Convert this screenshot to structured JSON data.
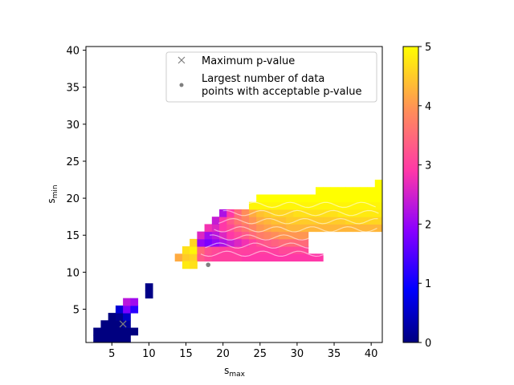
{
  "chart_data": {
    "type": "heatmap",
    "xlabel_base": "s",
    "xlabel_sub": "max",
    "ylabel_base": "s",
    "ylabel_sub": "min",
    "xlim": [
      1.5,
      41.5
    ],
    "ylim": [
      0.5,
      40.5
    ],
    "xticks": [
      5,
      10,
      15,
      20,
      25,
      30,
      35,
      40
    ],
    "yticks": [
      5,
      10,
      15,
      20,
      25,
      30,
      35,
      40
    ],
    "colorbar": {
      "min": 0,
      "max": 5,
      "ticks": [
        0,
        1,
        2,
        3,
        4,
        5
      ],
      "colormap": "gnuplot2-like"
    },
    "legend": {
      "placement": "top-right",
      "entries": [
        {
          "marker": "x",
          "label": "Maximum p-value",
          "color": "#7f7f7f"
        },
        {
          "marker": "dot",
          "label_line1": "Largest number of data",
          "label_line2": "points with acceptable p-value",
          "color": "#7f7f7f"
        }
      ]
    },
    "cells": [
      [
        3,
        2,
        0
      ],
      [
        4,
        2,
        0
      ],
      [
        5,
        2,
        0
      ],
      [
        6,
        2,
        0
      ],
      [
        7,
        2,
        0
      ],
      [
        8,
        2,
        0
      ],
      [
        3,
        1,
        0
      ],
      [
        4,
        1,
        0
      ],
      [
        5,
        1,
        0
      ],
      [
        6,
        1,
        0
      ],
      [
        7,
        1,
        0
      ],
      [
        4,
        3,
        0
      ],
      [
        5,
        3,
        0
      ],
      [
        6,
        3,
        0
      ],
      [
        7,
        3,
        0.2
      ],
      [
        5,
        4,
        0
      ],
      [
        6,
        4,
        0.1
      ],
      [
        7,
        4,
        0.5
      ],
      [
        6,
        5,
        0.6
      ],
      [
        7,
        5,
        1.8
      ],
      [
        8,
        5,
        1.2
      ],
      [
        7,
        6,
        2.3
      ],
      [
        8,
        6,
        2.1
      ],
      [
        10,
        7,
        0.05
      ],
      [
        10,
        8,
        0.05
      ],
      [
        14,
        12,
        4.2
      ],
      [
        15,
        12,
        4.5
      ],
      [
        16,
        12,
        4.6
      ],
      [
        17,
        12,
        3.3
      ],
      [
        18,
        12,
        3.1
      ],
      [
        19,
        12,
        3.0
      ],
      [
        20,
        12,
        3.0
      ],
      [
        21,
        12,
        3.0
      ],
      [
        22,
        12,
        3.0
      ],
      [
        23,
        12,
        2.9
      ],
      [
        24,
        12,
        2.9
      ],
      [
        25,
        12,
        2.9
      ],
      [
        26,
        12,
        2.9
      ],
      [
        27,
        12,
        2.9
      ],
      [
        28,
        12,
        2.9
      ],
      [
        29,
        12,
        2.9
      ],
      [
        30,
        12,
        2.9
      ],
      [
        31,
        12,
        2.9
      ],
      [
        32,
        12,
        2.9
      ],
      [
        33,
        12,
        2.9
      ],
      [
        15,
        11,
        4.8
      ],
      [
        16,
        11,
        4.7
      ],
      [
        15,
        13,
        4.7
      ],
      [
        16,
        13,
        4.9
      ],
      [
        17,
        13,
        3.5
      ],
      [
        18,
        13,
        3.2
      ],
      [
        19,
        13,
        3.1
      ],
      [
        20,
        13,
        3.0
      ],
      [
        21,
        13,
        3.0
      ],
      [
        22,
        13,
        3.0
      ],
      [
        23,
        13,
        3.0
      ],
      [
        24,
        13,
        3.0
      ],
      [
        25,
        13,
        3.0
      ],
      [
        26,
        13,
        3.0
      ],
      [
        27,
        13,
        3.0
      ],
      [
        28,
        13,
        3.1
      ],
      [
        29,
        13,
        3.1
      ],
      [
        30,
        13,
        3.1
      ],
      [
        31,
        13,
        3.1
      ],
      [
        16,
        14,
        4.6
      ],
      [
        17,
        14,
        2.0
      ],
      [
        18,
        14,
        1.8
      ],
      [
        19,
        14,
        2.0
      ],
      [
        20,
        14,
        2.2
      ],
      [
        21,
        14,
        2.4
      ],
      [
        22,
        14,
        2.6
      ],
      [
        23,
        14,
        2.8
      ],
      [
        24,
        14,
        3.0
      ],
      [
        25,
        14,
        3.2
      ],
      [
        26,
        14,
        3.3
      ],
      [
        27,
        14,
        3.4
      ],
      [
        28,
        14,
        3.5
      ],
      [
        29,
        14,
        3.5
      ],
      [
        30,
        14,
        3.5
      ],
      [
        31,
        14,
        3.5
      ],
      [
        17,
        15,
        2.6
      ],
      [
        18,
        15,
        2.1
      ],
      [
        19,
        15,
        2.3
      ],
      [
        20,
        15,
        2.6
      ],
      [
        21,
        15,
        2.9
      ],
      [
        22,
        15,
        3.1
      ],
      [
        23,
        15,
        3.3
      ],
      [
        24,
        15,
        3.5
      ],
      [
        25,
        15,
        3.7
      ],
      [
        26,
        15,
        3.8
      ],
      [
        27,
        15,
        3.9
      ],
      [
        28,
        15,
        4.0
      ],
      [
        29,
        15,
        4.0
      ],
      [
        30,
        15,
        4.0
      ],
      [
        31,
        15,
        4.0
      ],
      [
        18,
        16,
        2.8
      ],
      [
        19,
        16,
        2.6
      ],
      [
        20,
        16,
        2.9
      ],
      [
        21,
        16,
        3.1
      ],
      [
        22,
        16,
        3.4
      ],
      [
        23,
        16,
        3.6
      ],
      [
        24,
        16,
        3.8
      ],
      [
        25,
        16,
        4.0
      ],
      [
        26,
        16,
        4.1
      ],
      [
        27,
        16,
        4.2
      ],
      [
        28,
        16,
        4.2
      ],
      [
        29,
        16,
        4.3
      ],
      [
        30,
        16,
        4.3
      ],
      [
        31,
        16,
        4.3
      ],
      [
        32,
        16,
        4.3
      ],
      [
        33,
        16,
        4.3
      ],
      [
        34,
        16,
        4.3
      ],
      [
        35,
        16,
        4.3
      ],
      [
        36,
        16,
        4.3
      ],
      [
        37,
        16,
        4.3
      ],
      [
        38,
        16,
        4.3
      ],
      [
        39,
        16,
        4.3
      ],
      [
        40,
        16,
        4.3
      ],
      [
        41,
        16,
        4.3
      ],
      [
        19,
        17,
        2.4
      ],
      [
        20,
        17,
        2.9
      ],
      [
        21,
        17,
        3.3
      ],
      [
        22,
        17,
        3.6
      ],
      [
        23,
        17,
        3.8
      ],
      [
        24,
        17,
        4.0
      ],
      [
        25,
        17,
        4.2
      ],
      [
        26,
        17,
        4.3
      ],
      [
        27,
        17,
        4.4
      ],
      [
        28,
        17,
        4.4
      ],
      [
        29,
        17,
        4.5
      ],
      [
        30,
        17,
        4.5
      ],
      [
        31,
        17,
        4.5
      ],
      [
        32,
        17,
        4.5
      ],
      [
        33,
        17,
        4.5
      ],
      [
        34,
        17,
        4.5
      ],
      [
        35,
        17,
        4.5
      ],
      [
        36,
        17,
        4.5
      ],
      [
        37,
        17,
        4.6
      ],
      [
        38,
        17,
        4.6
      ],
      [
        39,
        17,
        4.6
      ],
      [
        40,
        17,
        4.6
      ],
      [
        41,
        17,
        4.6
      ],
      [
        20,
        18,
        2.2
      ],
      [
        21,
        18,
        2.9
      ],
      [
        22,
        18,
        3.5
      ],
      [
        23,
        18,
        3.9
      ],
      [
        24,
        18,
        4.2
      ],
      [
        25,
        18,
        4.4
      ],
      [
        26,
        18,
        4.5
      ],
      [
        27,
        18,
        4.6
      ],
      [
        28,
        18,
        4.6
      ],
      [
        29,
        18,
        4.6
      ],
      [
        30,
        18,
        4.7
      ],
      [
        31,
        18,
        4.7
      ],
      [
        32,
        18,
        4.7
      ],
      [
        33,
        18,
        4.7
      ],
      [
        34,
        18,
        4.7
      ],
      [
        35,
        18,
        4.7
      ],
      [
        36,
        18,
        4.8
      ],
      [
        37,
        18,
        4.8
      ],
      [
        38,
        18,
        4.8
      ],
      [
        39,
        18,
        4.8
      ],
      [
        40,
        18,
        4.8
      ],
      [
        41,
        18,
        4.8
      ],
      [
        24,
        19,
        4.9
      ],
      [
        25,
        19,
        4.9
      ],
      [
        26,
        19,
        4.9
      ],
      [
        27,
        19,
        4.9
      ],
      [
        28,
        19,
        4.9
      ],
      [
        29,
        19,
        4.9
      ],
      [
        30,
        19,
        4.9
      ],
      [
        31,
        19,
        4.9
      ],
      [
        32,
        19,
        4.9
      ],
      [
        33,
        19,
        4.9
      ],
      [
        34,
        19,
        4.9
      ],
      [
        35,
        19,
        4.9
      ],
      [
        36,
        19,
        4.9
      ],
      [
        37,
        19,
        4.9
      ],
      [
        38,
        19,
        4.9
      ],
      [
        39,
        19,
        4.9
      ],
      [
        40,
        19,
        4.9
      ],
      [
        41,
        19,
        4.9
      ],
      [
        25,
        20,
        5.0
      ],
      [
        26,
        20,
        5.0
      ],
      [
        27,
        20,
        5.0
      ],
      [
        28,
        20,
        5.0
      ],
      [
        29,
        20,
        5.0
      ],
      [
        30,
        20,
        5.0
      ],
      [
        31,
        20,
        5.0
      ],
      [
        32,
        20,
        5.0
      ],
      [
        33,
        20,
        5.0
      ],
      [
        34,
        20,
        5.0
      ],
      [
        35,
        20,
        5.0
      ],
      [
        36,
        20,
        5.0
      ],
      [
        37,
        20,
        5.0
      ],
      [
        38,
        20,
        5.0
      ],
      [
        39,
        20,
        5.0
      ],
      [
        40,
        20,
        5.0
      ],
      [
        41,
        20,
        5.0
      ],
      [
        33,
        21,
        5.0
      ],
      [
        34,
        21,
        5.0
      ],
      [
        35,
        21,
        5.0
      ],
      [
        36,
        21,
        5.0
      ],
      [
        37,
        21,
        5.0
      ],
      [
        38,
        21,
        5.0
      ],
      [
        39,
        21,
        5.0
      ],
      [
        40,
        21,
        5.0
      ],
      [
        41,
        21,
        5.0
      ],
      [
        41,
        22,
        5.0
      ]
    ],
    "max_pvalue_point": [
      6.5,
      3.0
    ],
    "largest_points_marker": [
      18,
      11
    ]
  }
}
